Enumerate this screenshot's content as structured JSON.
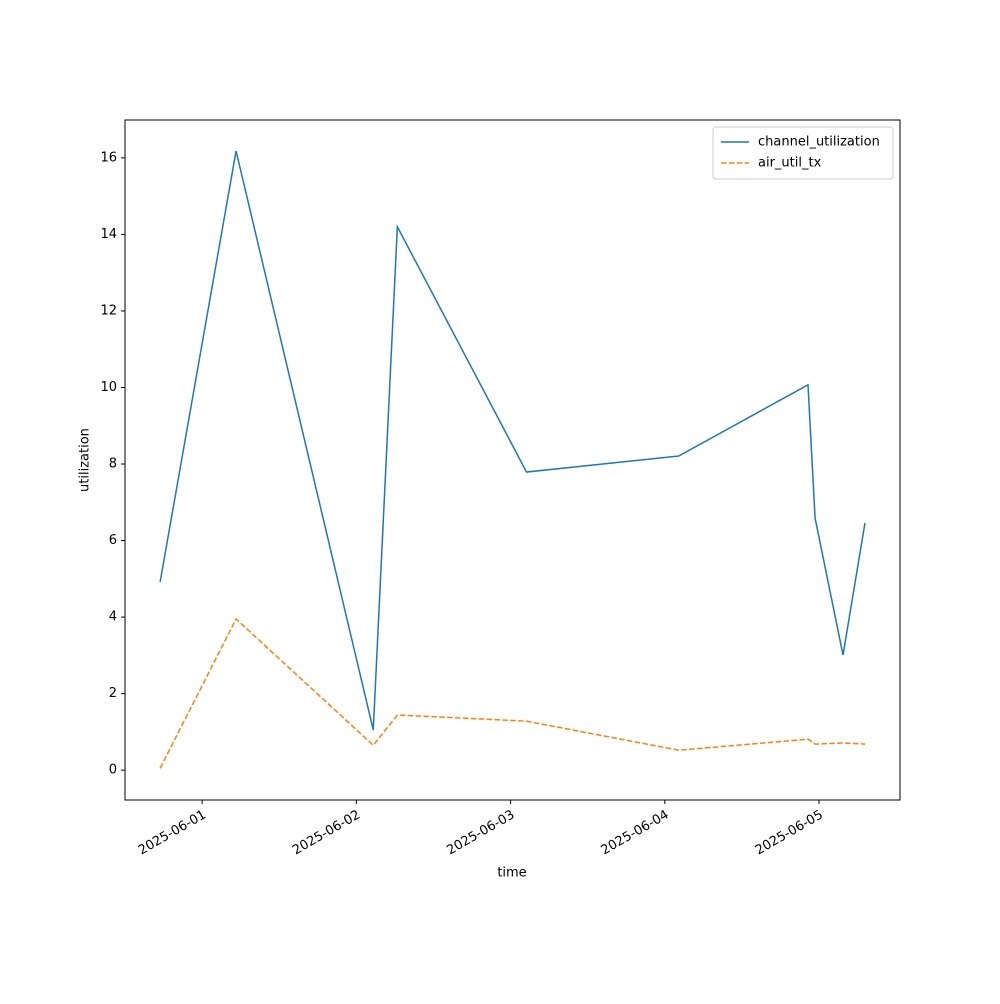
{
  "chart_data": {
    "type": "line",
    "xlabel": "time",
    "ylabel": "utilization",
    "x": [
      "2025-05-31T17:28",
      "2025-06-01T05:17",
      "2025-06-02T02:38",
      "2025-06-02T06:23",
      "2025-06-03T02:29",
      "2025-06-04T02:10",
      "2025-06-04T22:17",
      "2025-06-04T23:23",
      "2025-06-05T03:44",
      "2025-06-05T07:09"
    ],
    "series": [
      {
        "name": "channel_utilization",
        "color": "#1f77b4",
        "linestyle": "solid",
        "values": [
          4.92,
          16.18,
          1.05,
          14.2,
          7.79,
          8.21,
          10.07,
          6.59,
          3.01,
          6.46
        ]
      },
      {
        "name": "air_util_tx",
        "color": "#ff7f0e",
        "linestyle": "dashed",
        "values": [
          0.05,
          3.95,
          0.65,
          1.44,
          1.28,
          0.52,
          0.81,
          0.68,
          0.71,
          0.68
        ]
      }
    ],
    "xlim": [
      "2025-05-31T12:00",
      "2025-06-05T12:36"
    ],
    "xticks": [
      "2025-06-01",
      "2025-06-02",
      "2025-06-03",
      "2025-06-04",
      "2025-06-05"
    ],
    "ylim": [
      -0.78,
      16.99
    ],
    "yticks": [
      0,
      2,
      4,
      6,
      8,
      10,
      12,
      14,
      16
    ],
    "legend": "upper right"
  }
}
